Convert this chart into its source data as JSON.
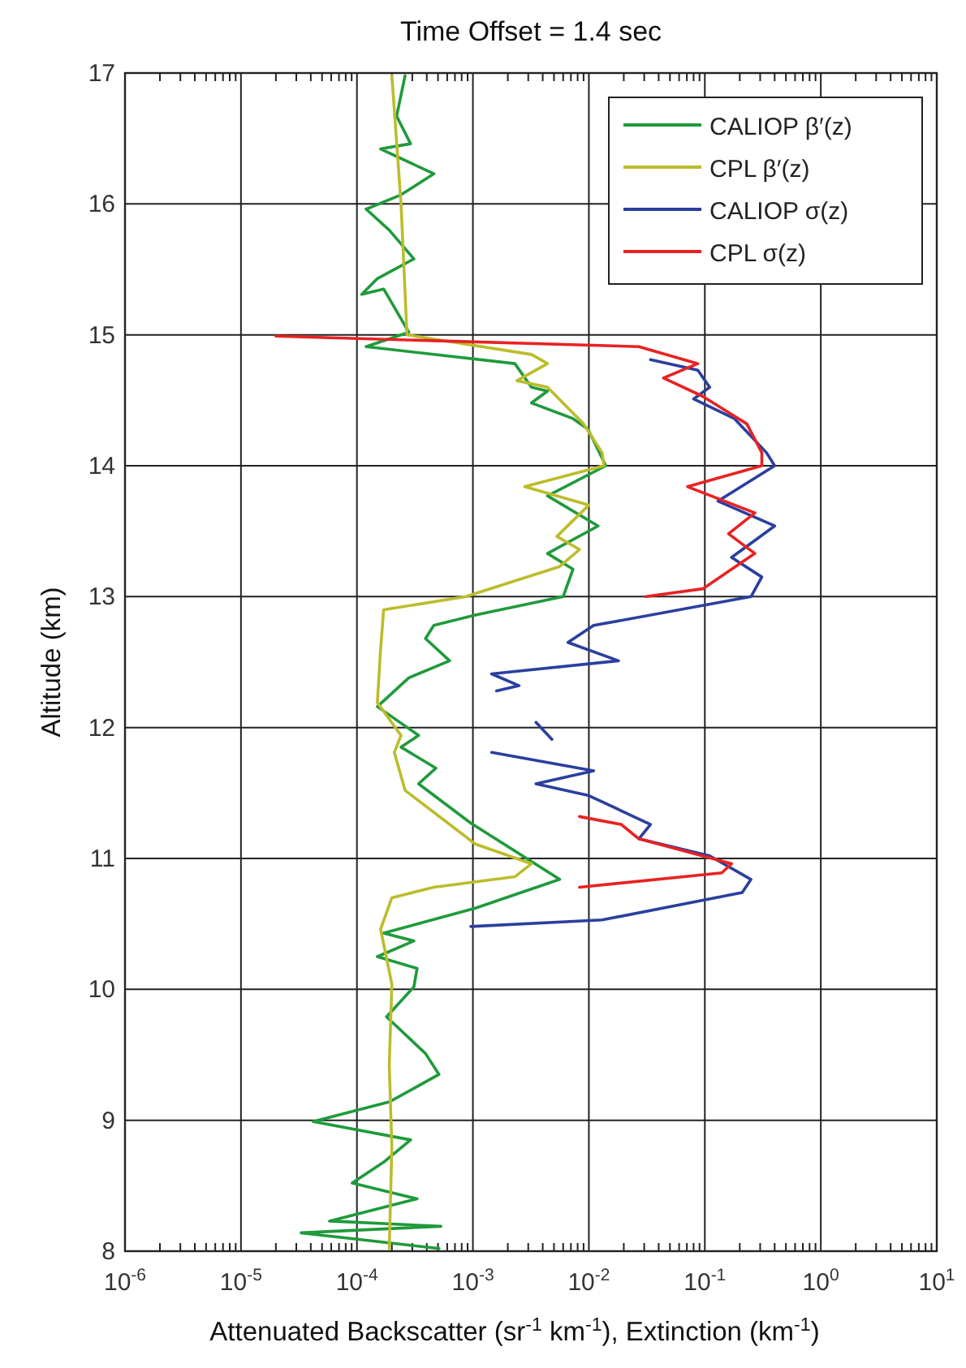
{
  "chart_data": {
    "type": "line",
    "title": "Time Offset = 1.4 sec",
    "xlabel": "Attenuated Backscatter (sr$^{-1}$ km$^{-1}$), Extinction (km$^{-1}$)",
    "ylabel": "Altitude (km)",
    "log": "x",
    "xlim": [
      1e-06,
      10
    ],
    "ylim": [
      8,
      17
    ],
    "xticks": [
      {
        "value": 1e-06,
        "label": "10$^{-6}$"
      },
      {
        "value": 1e-05,
        "label": "10$^{-5}$"
      },
      {
        "value": 0.0001,
        "label": "10$^{-4}$"
      },
      {
        "value": 0.001,
        "label": "10$^{-3}$"
      },
      {
        "value": 0.01,
        "label": "10$^{-2}$"
      },
      {
        "value": 0.1,
        "label": "10$^{-1}$"
      },
      {
        "value": 1,
        "label": "10$^{0}$"
      },
      {
        "value": 10,
        "label": "10$^{1}$"
      }
    ],
    "yticks": [
      8,
      9,
      10,
      11,
      12,
      13,
      14,
      15,
      16,
      17
    ],
    "grid": true,
    "legend": "top right",
    "line_style": "solid",
    "marker": "none",
    "series": [
      {
        "name": "CALIOP β′(z)",
        "color": "#1f9a3c",
        "x": [
          0.00026,
          0.00022,
          0.00029,
          0.00016,
          0.00046,
          0.00024,
          0.00012,
          0.00019,
          0.00031,
          0.00015,
          0.00011,
          0.00017,
          0.00028,
          0.00012,
          0.0023,
          0.0032,
          0.0044,
          0.0032,
          0.0073,
          0.0098,
          0.014,
          0.0044,
          0.012,
          0.0044,
          0.0073,
          0.006,
          0.00105,
          0.00046,
          0.00039,
          0.00063,
          0.00028,
          0.00015,
          0.00034,
          0.00024,
          0.00048,
          0.00034,
          0.00096,
          0.0056,
          0.00105,
          0.00017,
          0.00031,
          0.00015,
          0.00033,
          0.00031,
          0.00018,
          0.00039,
          0.00051,
          0.00019,
          4.2e-05,
          0.00029,
          0.00017,
          9.1e-05,
          0.00033,
          5.8e-05,
          0.00053,
          3.3e-05,
          0.00051
        ],
        "values": [
          16.98,
          16.67,
          16.46,
          16.42,
          16.23,
          16.07,
          15.96,
          15.8,
          15.58,
          15.43,
          15.31,
          15.35,
          15.02,
          14.91,
          14.78,
          14.6,
          14.57,
          14.48,
          14.36,
          14.28,
          14.0,
          13.77,
          13.54,
          13.33,
          13.21,
          13.0,
          12.86,
          12.78,
          12.68,
          12.51,
          12.38,
          12.16,
          11.94,
          11.85,
          11.69,
          11.57,
          11.27,
          10.84,
          10.62,
          10.43,
          10.37,
          10.25,
          10.16,
          10.02,
          9.79,
          9.51,
          9.35,
          9.14,
          8.99,
          8.85,
          8.68,
          8.52,
          8.4,
          8.23,
          8.19,
          8.14,
          8.02
        ]
      },
      {
        "name": "CPL β′(z)",
        "color": "#bcbc2c",
        "x": [
          0.0002,
          0.00024,
          0.00027,
          0.0032,
          0.0044,
          0.0024,
          0.0044,
          0.009,
          0.013,
          0.0135,
          0.0028,
          0.01,
          0.0053,
          0.0083,
          0.0056,
          0.00087,
          0.00017,
          0.00016,
          0.00015,
          0.00024,
          0.00021,
          0.00026,
          0.00063,
          0.00105,
          0.0032,
          0.0023,
          0.00046,
          0.0002,
          0.00016,
          0.0002,
          0.00019,
          0.0002,
          0.00019
        ],
        "values": [
          16.98,
          16.0,
          15.0,
          14.85,
          14.78,
          14.65,
          14.6,
          14.32,
          14.1,
          14.0,
          13.84,
          13.7,
          13.46,
          13.36,
          13.23,
          13.0,
          12.9,
          12.6,
          12.19,
          11.94,
          11.81,
          11.52,
          11.26,
          11.11,
          10.96,
          10.86,
          10.78,
          10.7,
          10.46,
          10.04,
          9.42,
          8.8,
          8.02
        ]
      },
      {
        "name": "CALIOP σ(z)",
        "color": "#2b3f9e",
        "x": [
          0.034,
          0.087,
          0.11,
          0.08,
          0.18,
          0.34,
          0.4,
          0.13,
          0.4,
          0.17,
          0.31,
          0.25,
          0.011,
          0.0066,
          0.018,
          0.00145,
          0.0025,
          0.0016,
          null,
          0.0035,
          0.0048,
          null,
          0.00145,
          0.011,
          0.0035,
          0.01,
          0.034,
          0.027,
          0.11,
          0.25,
          0.21,
          0.013,
          0.00096
        ],
        "values": [
          14.81,
          14.73,
          14.6,
          14.51,
          14.36,
          14.1,
          14.0,
          13.73,
          13.54,
          13.3,
          13.15,
          13.0,
          12.78,
          12.65,
          12.51,
          12.41,
          12.32,
          12.28,
          null,
          12.04,
          11.91,
          null,
          11.81,
          11.67,
          11.57,
          11.48,
          11.26,
          11.15,
          11.02,
          10.84,
          10.74,
          10.53,
          10.48
        ]
      },
      {
        "name": "CPL σ(z)",
        "color": "#e82222",
        "x": [
          2e-05,
          0.027,
          0.087,
          0.044,
          0.096,
          0.23,
          0.31,
          0.31,
          0.071,
          0.27,
          0.16,
          0.27,
          0.096,
          0.031,
          null,
          0.0083,
          0.019,
          0.027,
          0.17,
          0.14,
          0.0083
        ],
        "values": [
          14.99,
          14.91,
          14.78,
          14.67,
          14.53,
          14.32,
          14.1,
          14.0,
          13.84,
          13.64,
          13.48,
          13.33,
          13.06,
          13.0,
          null,
          11.32,
          11.26,
          11.15,
          10.96,
          10.89,
          10.78
        ]
      }
    ]
  }
}
